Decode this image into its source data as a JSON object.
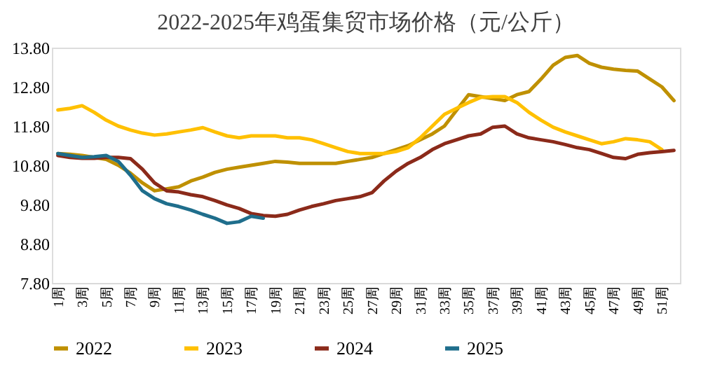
{
  "chart_data": {
    "type": "line",
    "title": "2022-2025年鸡蛋集贸市场价格（元/公斤）",
    "categories": [
      "1周",
      null,
      "3周",
      null,
      "5周",
      null,
      "7周",
      null,
      "9周",
      null,
      "11周",
      null,
      "13周",
      null,
      "15周",
      null,
      "17周",
      null,
      "19周",
      null,
      "21周",
      null,
      "23周",
      null,
      "25周",
      null,
      "27周",
      null,
      "29周",
      null,
      "31周",
      null,
      "33周",
      null,
      "35周",
      null,
      "37周",
      null,
      "39周",
      null,
      "41周",
      null,
      "43周",
      null,
      "45周",
      null,
      "47周",
      null,
      "49周",
      null,
      "51周",
      null
    ],
    "ylim": [
      7.8,
      13.8
    ],
    "yticks": [
      {
        "value": 7.8,
        "label": "7.80"
      },
      {
        "value": 8.8,
        "label": "8.80"
      },
      {
        "value": 9.8,
        "label": "9.80"
      },
      {
        "value": 10.8,
        "label": "10.80"
      },
      {
        "value": 11.8,
        "label": "11.80"
      },
      {
        "value": 12.8,
        "label": "12.80"
      },
      {
        "value": 13.8,
        "label": "13.80"
      }
    ],
    "grid": false,
    "legend": "bottom",
    "marker": "none",
    "line_style": "solid",
    "series": [
      {
        "name": "2022",
        "color": "#bf9000",
        "values": [
          11.1,
          11.08,
          11.05,
          11.0,
          10.95,
          10.8,
          10.6,
          10.35,
          10.15,
          10.2,
          10.25,
          10.4,
          10.5,
          10.62,
          10.7,
          10.75,
          10.8,
          10.85,
          10.9,
          10.88,
          10.85,
          10.85,
          10.85,
          10.85,
          10.9,
          10.95,
          11.0,
          11.1,
          11.2,
          11.3,
          11.45,
          11.6,
          11.8,
          12.2,
          12.6,
          12.55,
          12.5,
          12.45,
          12.6,
          12.68,
          13.0,
          13.35,
          13.55,
          13.6,
          13.4,
          13.3,
          13.25,
          13.22,
          13.2,
          13.0,
          12.8,
          12.45
        ]
      },
      {
        "name": "2023",
        "color": "#ffc000",
        "values": [
          12.21,
          12.25,
          12.32,
          12.15,
          11.95,
          11.8,
          11.7,
          11.62,
          11.57,
          11.6,
          11.65,
          11.7,
          11.76,
          11.65,
          11.55,
          11.5,
          11.55,
          11.55,
          11.55,
          11.5,
          11.5,
          11.45,
          11.35,
          11.25,
          11.15,
          11.1,
          11.1,
          11.1,
          11.15,
          11.25,
          11.5,
          11.8,
          12.1,
          12.25,
          12.4,
          12.53,
          12.55,
          12.55,
          12.4,
          12.15,
          11.95,
          11.77,
          11.65,
          11.55,
          11.45,
          11.35,
          11.4,
          11.48,
          11.45,
          11.4,
          11.2,
          null
        ]
      },
      {
        "name": "2024",
        "color": "#8b2a1a",
        "values": [
          11.05,
          11.0,
          10.98,
          10.98,
          11.0,
          11.0,
          10.97,
          10.7,
          10.35,
          10.15,
          10.12,
          10.05,
          10.0,
          9.9,
          9.79,
          9.7,
          9.57,
          9.52,
          9.5,
          9.55,
          9.66,
          9.75,
          9.82,
          9.9,
          9.95,
          10.0,
          10.1,
          10.4,
          10.65,
          10.85,
          11.0,
          11.2,
          11.35,
          11.45,
          11.55,
          11.6,
          11.77,
          11.8,
          11.6,
          11.5,
          11.45,
          11.4,
          11.33,
          11.25,
          11.2,
          11.1,
          11.0,
          10.97,
          11.08,
          11.12,
          11.15,
          11.18
        ]
      },
      {
        "name": "2025",
        "color": "#1f6e8c",
        "values": [
          11.1,
          11.05,
          11.0,
          11.02,
          11.05,
          10.9,
          10.55,
          10.15,
          9.95,
          9.82,
          9.75,
          9.66,
          9.55,
          9.45,
          9.32,
          9.36,
          9.5,
          9.45,
          null,
          null,
          null,
          null,
          null,
          null,
          null,
          null,
          null,
          null,
          null,
          null,
          null,
          null,
          null,
          null,
          null,
          null,
          null,
          null,
          null,
          null,
          null,
          null,
          null,
          null,
          null,
          null,
          null,
          null,
          null,
          null,
          null,
          null
        ]
      }
    ]
  }
}
